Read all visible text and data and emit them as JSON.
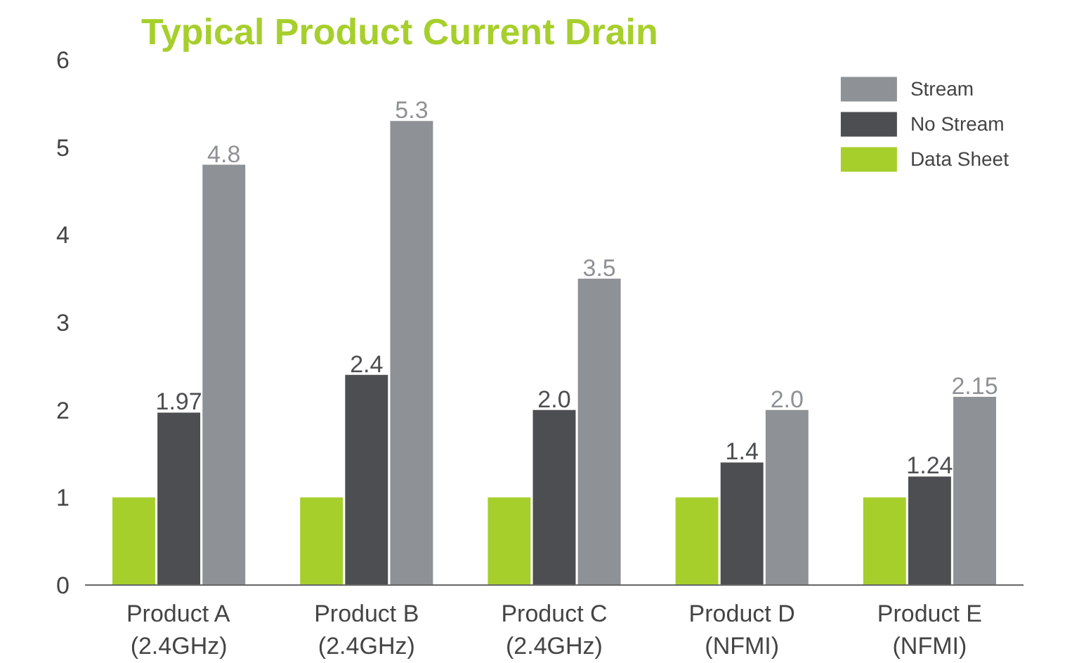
{
  "chart_data": {
    "type": "bar",
    "title": "Typical Product Current Drain",
    "categories": [
      "Product A\n(2.4GHz)",
      "Product B\n(2.4GHz)",
      "Product C\n(2.4GHz)",
      "Product D\n(NFMI)",
      "Product E\n(NFMI)"
    ],
    "series": [
      {
        "name": "Data Sheet",
        "color": "#a6cf2c",
        "values": [
          1,
          1,
          1,
          1,
          1
        ]
      },
      {
        "name": "No Stream",
        "color": "#4c4e52",
        "values": [
          1.97,
          2.4,
          2.0,
          1.4,
          1.24
        ],
        "value_labels": [
          "1.97",
          "2.4",
          "2.0",
          "1.4",
          "1.24"
        ]
      },
      {
        "name": "Stream",
        "color": "#8e9195",
        "values": [
          4.8,
          5.3,
          3.5,
          2.0,
          2.15
        ],
        "value_labels": [
          "4.8",
          "5.3",
          "3.5",
          "2.0",
          "2.15"
        ]
      }
    ],
    "ylim": [
      0,
      6
    ],
    "yticks": [
      0,
      1,
      2,
      3,
      4,
      5,
      6
    ],
    "grid": false,
    "legend": "top right"
  }
}
